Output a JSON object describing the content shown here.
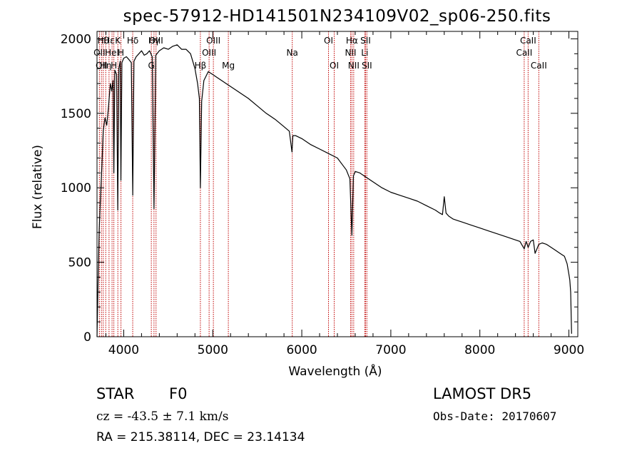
{
  "header": {
    "title": "spec-57912-HD141501N234109V02_sp06-250.fits"
  },
  "info": {
    "class_label": "STAR",
    "subclass": "F0",
    "survey": "LAMOST DR5",
    "cz": "cz = -43.5 ± 7.1 km/s",
    "obs_date": "Obs-Date: 20170607",
    "coords": "RA = 215.38114, DEC =  23.14134"
  },
  "colors": {
    "spectrum": "#000000",
    "line_marker": "#c00000",
    "axes": "#000000"
  },
  "chart_data": {
    "type": "line",
    "title": "spec-57912-HD141501N234109V02_sp06-250.fits",
    "xlabel": "Wavelength (Å)",
    "ylabel": "Flux (relative)",
    "xlim": [
      3700,
      9100
    ],
    "ylim": [
      0,
      2050
    ],
    "xticks": [
      4000,
      5000,
      6000,
      7000,
      8000,
      9000
    ],
    "yticks": [
      0,
      500,
      1000,
      1500,
      2000
    ],
    "grid": false,
    "series": [
      {
        "x": [
          3700,
          3712,
          3725,
          3740,
          3755,
          3770,
          3790,
          3810,
          3830,
          3850,
          3865,
          3880,
          3889,
          3900,
          3920,
          3933,
          3945,
          3960,
          3968,
          3980,
          4000,
          4030,
          4060,
          4085,
          4101,
          4115,
          4140,
          4170,
          4200,
          4230,
          4260,
          4290,
          4320,
          4340,
          4360,
          4400,
          4450,
          4500,
          4550,
          4600,
          4650,
          4700,
          4750,
          4800,
          4830,
          4850,
          4861,
          4875,
          4900,
          4950,
          5000,
          5050,
          5100,
          5150,
          5200,
          5300,
          5400,
          5500,
          5600,
          5700,
          5800,
          5860,
          5890,
          5900,
          5930,
          6000,
          6100,
          6200,
          6300,
          6400,
          6450,
          6500,
          6540,
          6563,
          6580,
          6600,
          6650,
          6700,
          6800,
          6900,
          7000,
          7100,
          7200,
          7300,
          7400,
          7500,
          7550,
          7580,
          7600,
          7620,
          7650,
          7700,
          7750,
          7800,
          7900,
          8000,
          8100,
          8200,
          8300,
          8400,
          8450,
          8498,
          8520,
          8542,
          8570,
          8600,
          8620,
          8662,
          8700,
          8750,
          8800,
          8850,
          8900,
          8950,
          8980,
          9000,
          9010,
          9020,
          9030
        ],
        "y": [
          0,
          380,
          720,
          950,
          1150,
          1380,
          1470,
          1420,
          1550,
          1700,
          1650,
          1720,
          1100,
          1790,
          1760,
          850,
          1800,
          1850,
          1050,
          1840,
          1870,
          1880,
          1860,
          1840,
          950,
          1850,
          1880,
          1900,
          1920,
          1890,
          1900,
          1920,
          1880,
          860,
          1890,
          1920,
          1940,
          1930,
          1950,
          1960,
          1930,
          1930,
          1900,
          1800,
          1700,
          1600,
          1000,
          1580,
          1720,
          1780,
          1760,
          1740,
          1720,
          1700,
          1680,
          1640,
          1600,
          1550,
          1500,
          1460,
          1410,
          1380,
          1240,
          1350,
          1350,
          1330,
          1290,
          1260,
          1230,
          1200,
          1160,
          1120,
          1060,
          680,
          1080,
          1110,
          1100,
          1080,
          1040,
          1000,
          970,
          950,
          930,
          910,
          880,
          850,
          830,
          820,
          940,
          830,
          810,
          790,
          780,
          770,
          750,
          730,
          710,
          690,
          670,
          650,
          640,
          590,
          640,
          600,
          640,
          650,
          560,
          620,
          630,
          620,
          600,
          580,
          560,
          540,
          490,
          420,
          380,
          300,
          20
        ]
      }
    ],
    "lines": [
      {
        "w": 3727,
        "label": "OII",
        "row": 2
      },
      {
        "w": 3750,
        "label": "OII",
        "row": 3
      },
      {
        "w": 3770,
        "label": "Hθ",
        "row": 1
      },
      {
        "w": 3798,
        "label": "Hη",
        "row": 3
      },
      {
        "w": 3835,
        "label": "Hε",
        "row": 1
      },
      {
        "w": 3869,
        "label": "HeI",
        "row": 2
      },
      {
        "w": 3889,
        "label": "H",
        "row": 3
      },
      {
        "w": 3934,
        "label": "K",
        "row": 1
      },
      {
        "w": 3969,
        "label": "H",
        "row": 2
      },
      {
        "w": 4101,
        "label": "Hδ",
        "row": 1
      },
      {
        "w": 4310,
        "label": "G",
        "row": 3
      },
      {
        "w": 4340,
        "label": "Hγ",
        "row": 1
      },
      {
        "w": 4363,
        "label": "OIII",
        "row": 1
      },
      {
        "w": 4861,
        "label": "Hβ",
        "row": 3
      },
      {
        "w": 4959,
        "label": "OIII",
        "row": 2
      },
      {
        "w": 5007,
        "label": "OIII",
        "row": 1
      },
      {
        "w": 5175,
        "label": "Mg",
        "row": 3
      },
      {
        "w": 5893,
        "label": "Na",
        "row": 2
      },
      {
        "w": 6300,
        "label": "OI",
        "row": 1
      },
      {
        "w": 6364,
        "label": "OI",
        "row": 3
      },
      {
        "w": 6548,
        "label": "NII",
        "row": 2
      },
      {
        "w": 6563,
        "label": "Hα",
        "row": 1
      },
      {
        "w": 6583,
        "label": "NII",
        "row": 3
      },
      {
        "w": 6707,
        "label": "Li",
        "row": 2
      },
      {
        "w": 6716,
        "label": "SII",
        "row": 1
      },
      {
        "w": 6731,
        "label": "SII",
        "row": 3
      },
      {
        "w": 8498,
        "label": "CaII",
        "row": 2
      },
      {
        "w": 8542,
        "label": "CaII",
        "row": 1
      },
      {
        "w": 8662,
        "label": "CaII",
        "row": 3
      }
    ]
  }
}
